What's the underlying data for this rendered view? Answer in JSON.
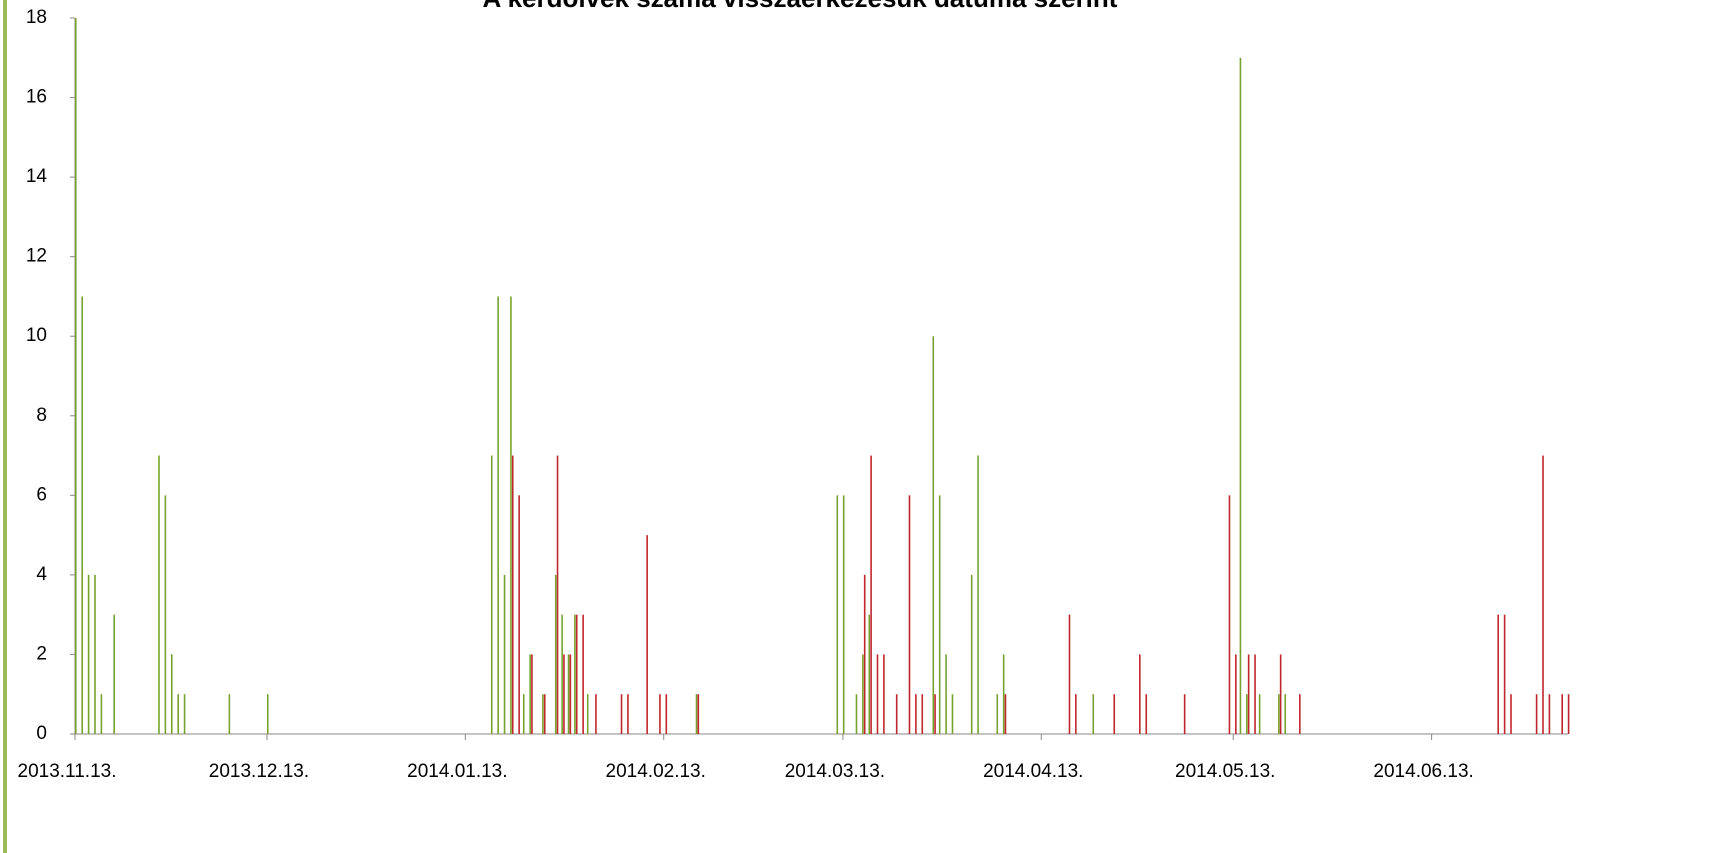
{
  "chart_data": {
    "type": "bar",
    "title": "A kérdőívek száma visszaérkezésük dátuma szerint",
    "xlim": [
      "2013-11-13",
      "2014-07-04"
    ],
    "xticks": [
      {
        "value": "2013-11-13",
        "label": "2013.11.13."
      },
      {
        "value": "2013-12-13",
        "label": "2013.12.13."
      },
      {
        "value": "2014-01-13",
        "label": "2014.01.13."
      },
      {
        "value": "2014-02-13",
        "label": "2014.02.13."
      },
      {
        "value": "2014-03-13",
        "label": "2014.03.13."
      },
      {
        "value": "2014-04-13",
        "label": "2014.04.13."
      },
      {
        "value": "2014-05-13",
        "label": "2014.05.13."
      },
      {
        "value": "2014-06-13",
        "label": "2014.06.13."
      }
    ],
    "ylim": [
      0,
      18
    ],
    "yticks": [
      0,
      2,
      4,
      6,
      8,
      10,
      12,
      14,
      16,
      18
    ],
    "series": [
      {
        "color": "#77a22f",
        "x": [
          "2013-11-13",
          "2013-11-14",
          "2013-11-15",
          "2013-11-16",
          "2013-11-17",
          "2013-11-19",
          "2013-11-26",
          "2013-11-27",
          "2013-11-28",
          "2013-11-29",
          "2013-11-30",
          "2013-12-07",
          "2013-12-13",
          "2014-01-17",
          "2014-01-18",
          "2014-01-19",
          "2014-01-20",
          "2014-01-22",
          "2014-01-23",
          "2014-01-25",
          "2014-01-27",
          "2014-01-28",
          "2014-01-29",
          "2014-01-30",
          "2014-02-01",
          "2014-02-18",
          "2014-03-12",
          "2014-03-13",
          "2014-03-15",
          "2014-03-16",
          "2014-03-17",
          "2014-03-27",
          "2014-03-28",
          "2014-03-29",
          "2014-03-30",
          "2014-04-02",
          "2014-04-03",
          "2014-04-06",
          "2014-04-07",
          "2014-04-21",
          "2014-05-14",
          "2014-05-15",
          "2014-05-17",
          "2014-05-20",
          "2014-05-21"
        ],
        "values": [
          18,
          11,
          4,
          4,
          1,
          3,
          7,
          6,
          2,
          1,
          1,
          1,
          1,
          7,
          11,
          4,
          11,
          1,
          2,
          1,
          4,
          3,
          2,
          3,
          1,
          1,
          6,
          6,
          1,
          2,
          3,
          10,
          6,
          2,
          1,
          4,
          7,
          1,
          2,
          1,
          17,
          1,
          1,
          1,
          1
        ]
      },
      {
        "color": "#c0272d",
        "x": [
          "2014-01-20",
          "2014-01-21",
          "2014-01-23",
          "2014-01-25",
          "2014-01-27",
          "2014-01-28",
          "2014-01-29",
          "2014-01-30",
          "2014-01-31",
          "2014-02-02",
          "2014-02-06",
          "2014-02-07",
          "2014-02-10",
          "2014-02-12",
          "2014-02-13",
          "2014-02-18",
          "2014-03-16",
          "2014-03-17",
          "2014-03-18",
          "2014-03-19",
          "2014-03-21",
          "2014-03-23",
          "2014-03-24",
          "2014-03-25",
          "2014-03-27",
          "2014-04-07",
          "2014-04-17",
          "2014-04-18",
          "2014-04-24",
          "2014-04-28",
          "2014-04-29",
          "2014-05-05",
          "2014-05-12",
          "2014-05-13",
          "2014-05-15",
          "2014-05-16",
          "2014-05-20",
          "2014-05-23",
          "2014-06-23",
          "2014-06-24",
          "2014-06-25",
          "2014-06-29",
          "2014-06-30",
          "2014-07-01",
          "2014-07-03",
          "2014-07-04"
        ],
        "values": [
          7,
          6,
          2,
          1,
          7,
          2,
          2,
          3,
          3,
          1,
          1,
          1,
          5,
          1,
          1,
          1,
          4,
          7,
          2,
          2,
          1,
          6,
          1,
          1,
          1,
          1,
          3,
          1,
          1,
          2,
          1,
          1,
          6,
          2,
          2,
          2,
          2,
          1,
          3,
          3,
          1,
          1,
          7,
          1,
          1,
          1
        ]
      }
    ]
  }
}
